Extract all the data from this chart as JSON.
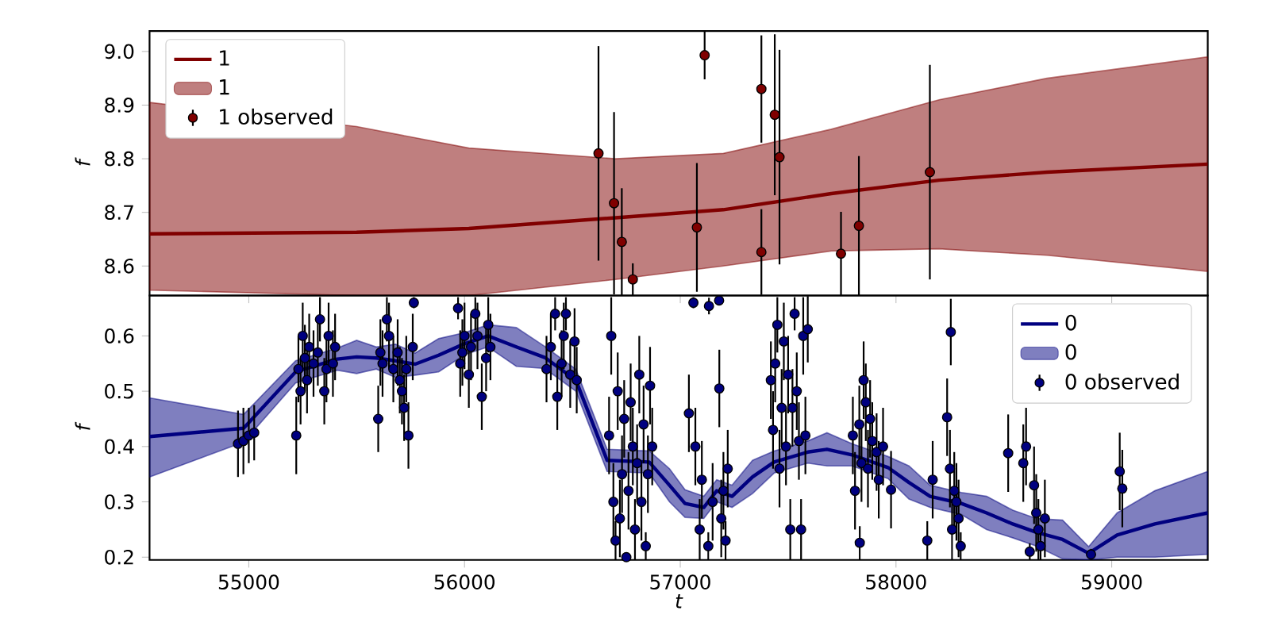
{
  "chart_data": [
    {
      "type": "line",
      "xlim": [
        54540,
        59445
      ],
      "ylim": [
        8.545,
        9.038
      ],
      "xticks": [
        55000,
        56000,
        57000,
        58000,
        59000
      ],
      "yticks": [
        8.6,
        8.7,
        8.8,
        8.9,
        {
          "value": 9,
          "label": "9.0"
        }
      ],
      "ylabel": "f",
      "legend": "top left",
      "tick_labels": "y",
      "series": [
        {
          "name": "1",
          "color": "#800000",
          "x": [
            54540,
            55500,
            56020,
            56700,
            57200,
            57700,
            58200,
            58700,
            59445
          ],
          "values": [
            8.66,
            8.663,
            8.67,
            8.69,
            8.705,
            8.735,
            8.76,
            8.775,
            8.79
          ],
          "upper": [
            8.905,
            8.86,
            8.82,
            8.8,
            8.81,
            8.855,
            8.91,
            8.95,
            8.99
          ],
          "lower": [
            8.555,
            8.545,
            8.545,
            8.575,
            8.6,
            8.628,
            8.632,
            8.62,
            8.59
          ]
        },
        {
          "name": "1 observed",
          "type": "scatter",
          "color": "#800000",
          "marker": "circle",
          "x": [
            56621,
            56693,
            56729,
            56780,
            57077,
            57113,
            57376,
            57376,
            57438,
            57460,
            57745,
            57828,
            58157
          ],
          "values": [
            8.81,
            8.717,
            8.645,
            8.575,
            8.672,
            8.993,
            8.93,
            8.626,
            8.882,
            8.803,
            8.623,
            8.675,
            8.775
          ],
          "errors": [
            0.2,
            0.17,
            0.1,
            0.03,
            0.12,
            0.045,
            0.1,
            0.08,
            0.15,
            0.2,
            0.078,
            0.13,
            0.2
          ]
        }
      ]
    },
    {
      "type": "line",
      "xlim": [
        54540,
        59445
      ],
      "ylim": [
        0.195,
        0.673
      ],
      "xticks": [
        55000,
        56000,
        57000,
        58000,
        59000
      ],
      "yticks": [
        0.2,
        0.3,
        0.4,
        0.5,
        0.6
      ],
      "xlabel": "t",
      "ylabel": "f",
      "legend": "top right",
      "series": [
        {
          "name": "0",
          "color": "#000080",
          "x": [
            54540,
            54976,
            55217,
            55410,
            55500,
            55591,
            55680,
            55771,
            55880,
            56001,
            56109,
            56240,
            56372,
            56516,
            56661,
            56856,
            56950,
            57022,
            57109,
            57169,
            57240,
            57335,
            57435,
            57591,
            57680,
            57796,
            57963,
            58060,
            58158,
            58303,
            58420,
            58541,
            58650,
            58772,
            58893,
            59025,
            59200,
            59445
          ],
          "values": [
            0.418,
            0.433,
            0.535,
            0.558,
            0.562,
            0.56,
            0.555,
            0.549,
            0.565,
            0.586,
            0.6,
            0.58,
            0.561,
            0.52,
            0.375,
            0.372,
            0.33,
            0.297,
            0.29,
            0.32,
            0.31,
            0.345,
            0.372,
            0.39,
            0.395,
            0.385,
            0.362,
            0.335,
            0.31,
            0.297,
            0.28,
            0.26,
            0.245,
            0.232,
            0.207,
            0.24,
            0.26,
            0.28
          ],
          "upper": [
            0.488,
            0.458,
            0.555,
            0.578,
            0.592,
            0.58,
            0.585,
            0.569,
            0.595,
            0.606,
            0.62,
            0.615,
            0.581,
            0.54,
            0.395,
            0.392,
            0.36,
            0.322,
            0.31,
            0.34,
            0.33,
            0.375,
            0.392,
            0.41,
            0.425,
            0.405,
            0.382,
            0.365,
            0.33,
            0.317,
            0.31,
            0.285,
            0.27,
            0.267,
            0.219,
            0.28,
            0.32,
            0.355
          ],
          "lower": [
            0.345,
            0.408,
            0.515,
            0.538,
            0.532,
            0.54,
            0.525,
            0.529,
            0.535,
            0.566,
            0.58,
            0.545,
            0.541,
            0.5,
            0.355,
            0.352,
            0.3,
            0.272,
            0.27,
            0.3,
            0.29,
            0.315,
            0.352,
            0.37,
            0.365,
            0.365,
            0.342,
            0.305,
            0.29,
            0.277,
            0.25,
            0.235,
            0.22,
            0.197,
            0.195,
            0.2,
            0.2,
            0.205
          ]
        },
        {
          "name": "0 observed",
          "type": "scatter",
          "color": "#000080",
          "marker": "circle",
          "x": [
            54950,
            54975,
            55000,
            55025,
            55220,
            55230,
            55240,
            55250,
            55260,
            55270,
            55280,
            55300,
            55320,
            55330,
            55350,
            55360,
            55370,
            55390,
            55400,
            55600,
            55610,
            55620,
            55640,
            55650,
            55670,
            55690,
            55700,
            55710,
            55720,
            55730,
            55740,
            55760,
            55765,
            55970,
            55980,
            55990,
            56000,
            56020,
            56030,
            56050,
            56060,
            56080,
            56100,
            56110,
            56120,
            56380,
            56400,
            56420,
            56430,
            56450,
            56460,
            56470,
            56490,
            56510,
            56520,
            56670,
            56680,
            56690,
            56700,
            56710,
            56720,
            56730,
            56740,
            56750,
            56760,
            56770,
            56780,
            56790,
            56800,
            56810,
            56820,
            56830,
            56840,
            56850,
            56860,
            56870,
            57061,
            57070,
            57040,
            57090,
            57100,
            57130,
            57133,
            57150,
            57181,
            57180,
            57190,
            57200,
            57210,
            57220,
            57420,
            57430,
            57440,
            57450,
            57460,
            57470,
            57480,
            57490,
            57500,
            57510,
            57520,
            57530,
            57540,
            57550,
            57560,
            57570,
            57580,
            57591,
            57800,
            57810,
            57832,
            57830,
            57840,
            57850,
            57860,
            57870,
            57880,
            57890,
            57910,
            57920,
            57940,
            57977,
            58145,
            58170,
            58237,
            58254,
            58250,
            58260,
            58270,
            58280,
            58290,
            58300,
            58520,
            58590,
            58603,
            58620,
            58640,
            58650,
            58660,
            58670,
            58690,
            58904,
            59037,
            59049
          ],
          "values": [
            0.405,
            0.41,
            0.42,
            0.425,
            0.42,
            0.54,
            0.5,
            0.6,
            0.56,
            0.52,
            0.58,
            0.55,
            0.57,
            0.63,
            0.5,
            0.54,
            0.6,
            0.55,
            0.58,
            0.45,
            0.57,
            0.55,
            0.63,
            0.6,
            0.54,
            0.57,
            0.52,
            0.5,
            0.47,
            0.54,
            0.42,
            0.58,
            0.66,
            0.65,
            0.55,
            0.57,
            0.6,
            0.53,
            0.58,
            0.64,
            0.6,
            0.49,
            0.56,
            0.62,
            0.58,
            0.54,
            0.58,
            0.64,
            0.49,
            0.55,
            0.6,
            0.64,
            0.53,
            0.59,
            0.52,
            0.42,
            0.6,
            0.3,
            0.23,
            0.5,
            0.27,
            0.35,
            0.45,
            0.2,
            0.32,
            0.48,
            0.4,
            0.25,
            0.37,
            0.53,
            0.3,
            0.44,
            0.22,
            0.35,
            0.51,
            0.4,
            0.66,
            0.4,
            0.46,
            0.25,
            0.34,
            0.22,
            0.654,
            0.3,
            0.505,
            0.664,
            0.27,
            0.32,
            0.23,
            0.36,
            0.52,
            0.43,
            0.55,
            0.62,
            0.36,
            0.47,
            0.59,
            0.4,
            0.53,
            0.25,
            0.47,
            0.64,
            0.5,
            0.41,
            0.25,
            0.6,
            0.42,
            0.612,
            0.42,
            0.32,
            0.226,
            0.44,
            0.37,
            0.52,
            0.48,
            0.36,
            0.45,
            0.41,
            0.39,
            0.34,
            0.4,
            0.322,
            0.23,
            0.34,
            0.453,
            0.607,
            0.36,
            0.25,
            0.32,
            0.3,
            0.27,
            0.22,
            0.388,
            0.37,
            0.4,
            0.21,
            0.33,
            0.28,
            0.25,
            0.22,
            0.27,
            0.205,
            0.355,
            0.324
          ],
          "errors": [
            0.06,
            0.06,
            0.05,
            0.05,
            0.07,
            0.06,
            0.06,
            0.06,
            0.06,
            0.06,
            0.06,
            0.06,
            0.06,
            0.04,
            0.06,
            0.06,
            0.06,
            0.06,
            0.06,
            0.06,
            0.06,
            0.06,
            0.04,
            0.06,
            0.06,
            0.06,
            0.06,
            0.06,
            0.06,
            0.06,
            0.06,
            0.06,
            0.01,
            0.02,
            0.06,
            0.06,
            0.06,
            0.06,
            0.06,
            0.03,
            0.06,
            0.06,
            0.06,
            0.05,
            0.06,
            0.06,
            0.06,
            0.03,
            0.06,
            0.06,
            0.06,
            0.03,
            0.06,
            0.06,
            0.06,
            0.07,
            0.07,
            0.07,
            0.035,
            0.07,
            0.07,
            0.07,
            0.07,
            0.005,
            0.07,
            0.07,
            0.07,
            0.055,
            0.07,
            0.07,
            0.07,
            0.07,
            0.025,
            0.07,
            0.07,
            0.07,
            0.01,
            0.07,
            0.07,
            0.055,
            0.07,
            0.025,
            0.015,
            0.07,
            0.07,
            0.009,
            0.07,
            0.07,
            0.035,
            0.07,
            0.07,
            0.07,
            0.07,
            0.05,
            0.07,
            0.07,
            0.07,
            0.07,
            0.07,
            0.055,
            0.07,
            0.03,
            0.07,
            0.07,
            0.055,
            0.07,
            0.07,
            0.06,
            0.07,
            0.07,
            0.03,
            0.07,
            0.07,
            0.07,
            0.07,
            0.07,
            0.07,
            0.07,
            0.07,
            0.07,
            0.07,
            0.07,
            0.035,
            0.07,
            0.07,
            0.06,
            0.07,
            0.055,
            0.07,
            0.07,
            0.07,
            0.025,
            0.07,
            0.07,
            0.07,
            0.015,
            0.07,
            0.07,
            0.055,
            0.025,
            0.07,
            0.01,
            0.07,
            0.07
          ]
        }
      ]
    }
  ]
}
